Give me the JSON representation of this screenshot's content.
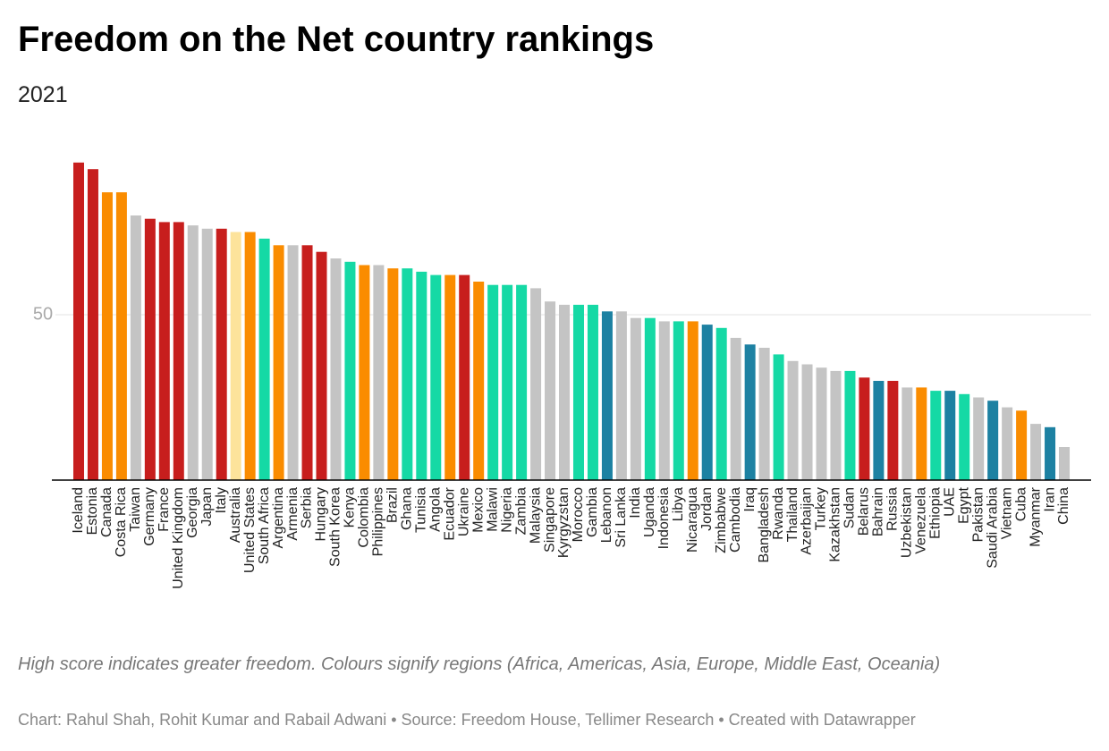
{
  "chart_data": {
    "type": "bar",
    "title": "Freedom on the Net country rankings",
    "subtitle": "2021",
    "categories": [
      "Iceland",
      "Estonia",
      "Canada",
      "Costa Rica",
      "Taiwan",
      "Germany",
      "France",
      "United Kingdom",
      "Georgia",
      "Japan",
      "Italy",
      "Australia",
      "United States",
      "South Africa",
      "Argentina",
      "Armenia",
      "Serbia",
      "Hungary",
      "South Korea",
      "Kenya",
      "Colombia",
      "Philippines",
      "Brazil",
      "Ghana",
      "Tunisia",
      "Angola",
      "Ecuador",
      "Ukraine",
      "Mexico",
      "Malawi",
      "Nigeria",
      "Zambia",
      "Malaysia",
      "Singapore",
      "Kyrgyzstan",
      "Morocco",
      "Gambia",
      "Lebanon",
      "Sri Lanka",
      "India",
      "Uganda",
      "Indonesia",
      "Libya",
      "Nicaragua",
      "Jordan",
      "Zimbabwe",
      "Cambodia",
      "Iraq",
      "Bangladesh",
      "Rwanda",
      "Thailand",
      "Azerbaijan",
      "Turkey",
      "Kazakhstan",
      "Sudan",
      "Belarus",
      "Bahrain",
      "Russia",
      "Uzbekistan",
      "Venezuela",
      "Ethiopia",
      "UAE",
      "Egypt",
      "Pakistan",
      "Saudi Arabia",
      "Vietnam",
      "Cuba",
      "Myanmar",
      "Iran",
      "China"
    ],
    "values": [
      96,
      94,
      87,
      87,
      80,
      79,
      78,
      78,
      77,
      76,
      76,
      75,
      75,
      73,
      71,
      71,
      71,
      69,
      67,
      66,
      65,
      65,
      64,
      64,
      63,
      62,
      62,
      62,
      60,
      59,
      59,
      59,
      58,
      54,
      53,
      53,
      53,
      51,
      51,
      49,
      49,
      48,
      48,
      48,
      47,
      46,
      43,
      41,
      40,
      38,
      36,
      35,
      34,
      33,
      33,
      31,
      30,
      30,
      28,
      28,
      27,
      27,
      26,
      25,
      24,
      22,
      21,
      17,
      16,
      10
    ],
    "colors": [
      "#c71e1d",
      "#c71e1d",
      "#fa8c00",
      "#fa8c00",
      "#c4c4c4",
      "#c71e1d",
      "#c71e1d",
      "#c71e1d",
      "#c4c4c4",
      "#c4c4c4",
      "#c71e1d",
      "#fde39b",
      "#fa8c00",
      "#15d9a5",
      "#fa8c00",
      "#c4c4c4",
      "#c71e1d",
      "#c71e1d",
      "#c4c4c4",
      "#15d9a5",
      "#fa8c00",
      "#c4c4c4",
      "#fa8c00",
      "#15d9a5",
      "#15d9a5",
      "#15d9a5",
      "#fa8c00",
      "#c71e1d",
      "#fa8c00",
      "#15d9a5",
      "#15d9a5",
      "#15d9a5",
      "#c4c4c4",
      "#c4c4c4",
      "#c4c4c4",
      "#15d9a5",
      "#15d9a5",
      "#1d81a2",
      "#c4c4c4",
      "#c4c4c4",
      "#15d9a5",
      "#c4c4c4",
      "#15d9a5",
      "#fa8c00",
      "#1d81a2",
      "#15d9a5",
      "#c4c4c4",
      "#1d81a2",
      "#c4c4c4",
      "#15d9a5",
      "#c4c4c4",
      "#c4c4c4",
      "#c4c4c4",
      "#c4c4c4",
      "#15d9a5",
      "#c71e1d",
      "#1d81a2",
      "#c71e1d",
      "#c4c4c4",
      "#fa8c00",
      "#15d9a5",
      "#1d81a2",
      "#15d9a5",
      "#c4c4c4",
      "#1d81a2",
      "#c4c4c4",
      "#fa8c00",
      "#c4c4c4",
      "#1d81a2",
      "#c4c4c4"
    ],
    "ylim": [
      0,
      100
    ],
    "yticks": [
      50
    ],
    "grid": true,
    "notes": "High score indicates greater freedom. Colours signify regions (Africa, Americas, Asia, Europe, Middle East, Oceania)",
    "source": "Chart: Rahul Shah, Rohit Kumar and Rabail Adwani • Source: Freedom House, Tellimer Research • Created with Datawrapper"
  }
}
